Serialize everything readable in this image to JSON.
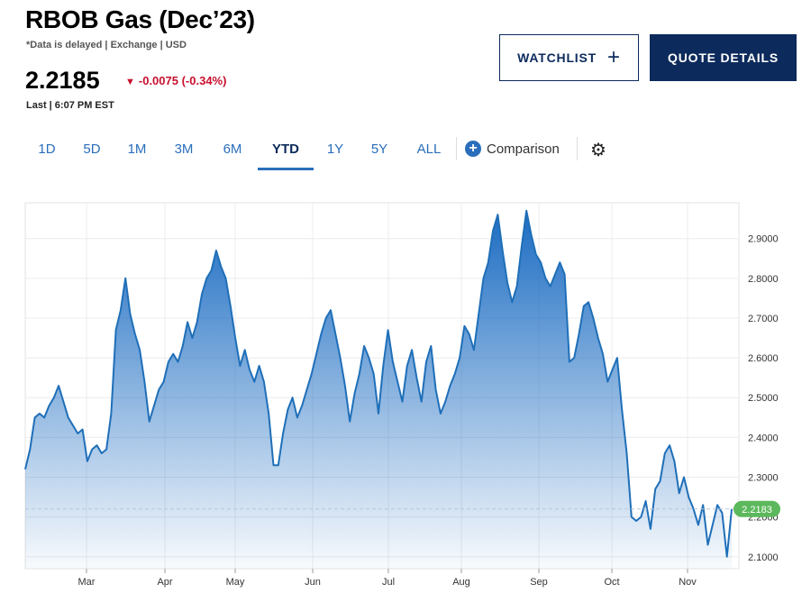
{
  "header": {
    "title": "RBOB Gas (Dec’23)",
    "subtitle": "*Data is delayed | Exchange | USD",
    "price": "2.2185",
    "change": "-0.0075 (-0.34%)",
    "last_label": "Last | 6:07 PM EST"
  },
  "buttons": {
    "watchlist": "WATCHLIST",
    "quote_details": "QUOTE DETAILS"
  },
  "tabs": [
    {
      "label": "1D"
    },
    {
      "label": "5D"
    },
    {
      "label": "1M"
    },
    {
      "label": "3M"
    },
    {
      "label": "6M"
    },
    {
      "label": "YTD"
    },
    {
      "label": "1Y"
    },
    {
      "label": "5Y"
    },
    {
      "label": "ALL"
    }
  ],
  "active_tab": "YTD",
  "comparison_label": "Comparison",
  "icons": {
    "comparison": "plus-circle-icon",
    "settings": "gear-icon",
    "change": "triangle-down-icon"
  },
  "colors": {
    "accent": "#2a6ebb",
    "navy": "#0c2a5c",
    "negative": "#c8102e",
    "last_price": "#5cb85c"
  },
  "chart_data": {
    "type": "area",
    "x_tick_labels": [
      "Mar",
      "Apr",
      "May",
      "Jun",
      "Jul",
      "Aug",
      "Sep",
      "Oct",
      "Nov"
    ],
    "y_tick_labels": [
      "2.9000",
      "2.8000",
      "2.7000",
      "2.6000",
      "2.5000",
      "2.4000",
      "2.3000",
      "2.2000",
      "2.1000"
    ],
    "y_ticks": [
      2.9,
      2.8,
      2.7,
      2.6,
      2.5,
      2.4,
      2.3,
      2.2,
      2.1
    ],
    "ylim": [
      2.07,
      2.99
    ],
    "last_value_label": "2.2183",
    "grid": true,
    "series": [
      {
        "values": [
          2.32,
          2.37,
          2.45,
          2.46,
          2.45,
          2.48,
          2.5,
          2.53,
          2.49,
          2.45,
          2.43,
          2.41,
          2.42,
          2.34,
          2.37,
          2.38,
          2.36,
          2.37,
          2.46,
          2.67,
          2.72,
          2.8,
          2.71,
          2.66,
          2.62,
          2.54,
          2.44,
          2.48,
          2.52,
          2.54,
          2.59,
          2.61,
          2.59,
          2.63,
          2.69,
          2.65,
          2.69,
          2.76,
          2.8,
          2.82,
          2.87,
          2.83,
          2.8,
          2.73,
          2.65,
          2.58,
          2.62,
          2.57,
          2.54,
          2.58,
          2.54,
          2.46,
          2.33,
          2.33,
          2.41,
          2.47,
          2.5,
          2.45,
          2.48,
          2.52,
          2.56,
          2.61,
          2.66,
          2.7,
          2.72,
          2.66,
          2.6,
          2.53,
          2.44,
          2.51,
          2.56,
          2.63,
          2.6,
          2.56,
          2.46,
          2.58,
          2.67,
          2.59,
          2.54,
          2.49,
          2.58,
          2.62,
          2.55,
          2.49,
          2.59,
          2.63,
          2.52,
          2.46,
          2.49,
          2.53,
          2.56,
          2.6,
          2.68,
          2.66,
          2.62,
          2.71,
          2.8,
          2.84,
          2.92,
          2.96,
          2.87,
          2.79,
          2.74,
          2.78,
          2.88,
          2.97,
          2.91,
          2.86,
          2.84,
          2.8,
          2.78,
          2.81,
          2.84,
          2.81,
          2.59,
          2.6,
          2.66,
          2.73,
          2.74,
          2.7,
          2.65,
          2.61,
          2.54,
          2.57,
          2.6,
          2.47,
          2.36,
          2.2,
          2.19,
          2.2,
          2.24,
          2.17,
          2.27,
          2.29,
          2.36,
          2.38,
          2.34,
          2.26,
          2.3,
          2.25,
          2.22,
          2.18,
          2.23,
          2.13,
          2.18,
          2.23,
          2.21,
          2.1,
          2.22
        ]
      }
    ]
  }
}
